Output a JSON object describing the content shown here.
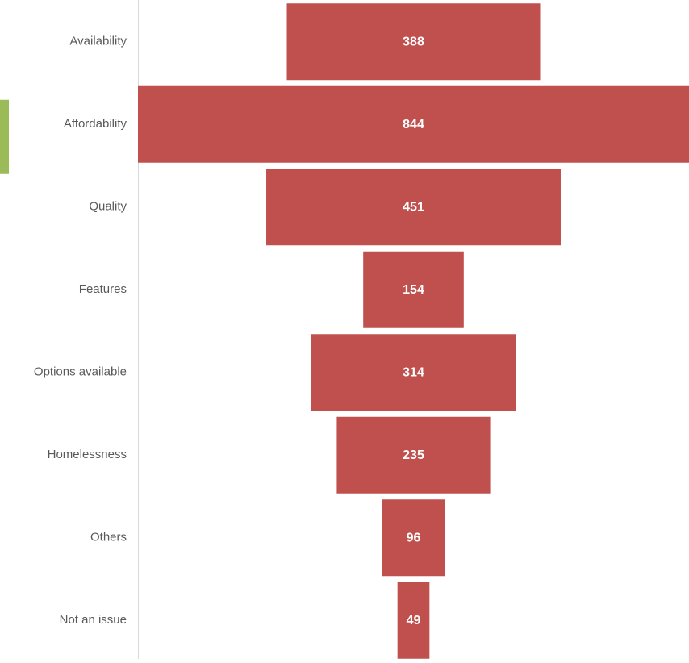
{
  "chart_data": {
    "type": "bar",
    "orientation": "horizontal",
    "style": "funnel",
    "categories": [
      "Availability",
      "Affordability",
      "Quality",
      "Features",
      "Options available",
      "Homelessness",
      "Others",
      "Not an issue"
    ],
    "values": [
      388,
      844,
      451,
      154,
      314,
      235,
      96,
      49
    ],
    "title": "",
    "xlabel": "",
    "ylabel": "",
    "xlim": [
      0,
      844
    ],
    "grid": false,
    "legend": "none",
    "data_labels": true,
    "highlighted_category": "Affordability"
  },
  "colors": {
    "bar": "#c0504d",
    "highlight_marker": "#9bbb59",
    "axis_line": "#d9d9d9",
    "label_text": "#595959",
    "value_text": "#ffffff"
  }
}
